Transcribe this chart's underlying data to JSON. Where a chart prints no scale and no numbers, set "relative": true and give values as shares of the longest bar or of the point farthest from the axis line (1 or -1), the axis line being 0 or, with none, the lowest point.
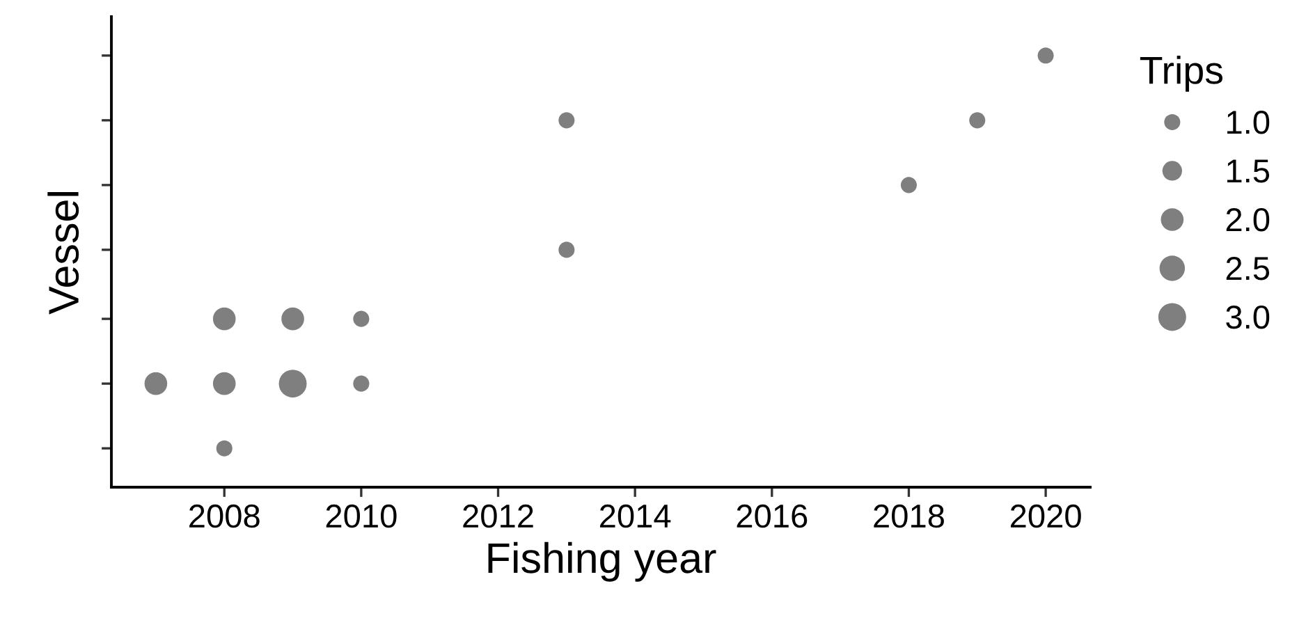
{
  "chart_data": {
    "type": "bubble",
    "xlabel": "Fishing year",
    "ylabel": "Vessel",
    "legend_title": "Trips",
    "x": [
      2007,
      2008,
      2008,
      2008,
      2009,
      2009,
      2010,
      2010,
      2013,
      2013,
      2018,
      2019,
      2020
    ],
    "values": [
      0.24,
      0.09,
      0.24,
      0.39,
      0.24,
      0.39,
      0.24,
      0.39,
      0.55,
      0.85,
      0.7,
      0.85,
      1
    ],
    "relative": true,
    "sizes": [
      2,
      1,
      2,
      2,
      3,
      2,
      1,
      1,
      1,
      1,
      1,
      1,
      1
    ],
    "size_legend": [
      {
        "value": 1,
        "label": "1.0"
      },
      {
        "value": 1.5,
        "label": "1.5"
      },
      {
        "value": 2,
        "label": "2.0"
      },
      {
        "value": 2.5,
        "label": "2.5"
      },
      {
        "value": 3,
        "label": "3.0"
      }
    ],
    "color": "#7f7f7f",
    "xlim": [
      2006.35,
      2020.65
    ],
    "xticks": [
      2008,
      2010,
      2012,
      2014,
      2016,
      2018,
      2020
    ],
    "tick_labels": "x",
    "grid": false
  }
}
